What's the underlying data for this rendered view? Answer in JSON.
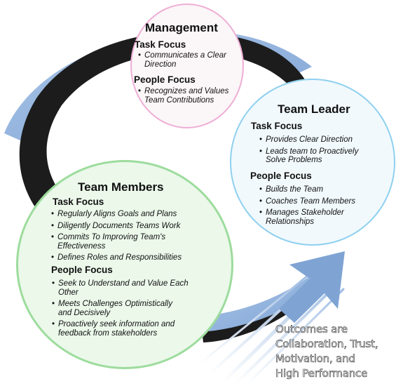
{
  "colors": {
    "cycle_arrow": "#8fb3de",
    "cycle_band": "#1c1c1c",
    "management_border": "#eeaed6",
    "leader_border": "#8fd0ef",
    "members_border": "#9ddc9d"
  },
  "management": {
    "title": "Management",
    "task_heading": "Task Focus",
    "task_items": [
      "Communicates a Clear Direction"
    ],
    "people_heading": "People Focus",
    "people_items": [
      "Recognizes and Values Team Contributions"
    ]
  },
  "team_leader": {
    "title": "Team Leader",
    "task_heading": "Task Focus",
    "task_items": [
      "Provides Clear Direction",
      "Leads team to Proactively Solve Problems"
    ],
    "people_heading": "People Focus",
    "people_items": [
      "Builds the Team",
      "Coaches Team Members",
      "Manages Stakeholder Relationships"
    ]
  },
  "team_members": {
    "title": "Team Members",
    "task_heading": "Task Focus",
    "task_items": [
      "Regularly Aligns Goals and Plans",
      "Diligently Documents Teams Work",
      "Commits To Improving Team's Effectiveness",
      "Defines Roles and Responsibilities"
    ],
    "people_heading": "People Focus",
    "people_items": [
      "Seek to Understand and Value Each Other",
      "Meets Challenges Optimistically and Decisively",
      "Proactively seek information and feedback from stakeholders"
    ]
  },
  "outcomes": {
    "lines": [
      "Outcomes are",
      "Collaboration, Trust,",
      "Motivation, and",
      "High Performance"
    ]
  }
}
